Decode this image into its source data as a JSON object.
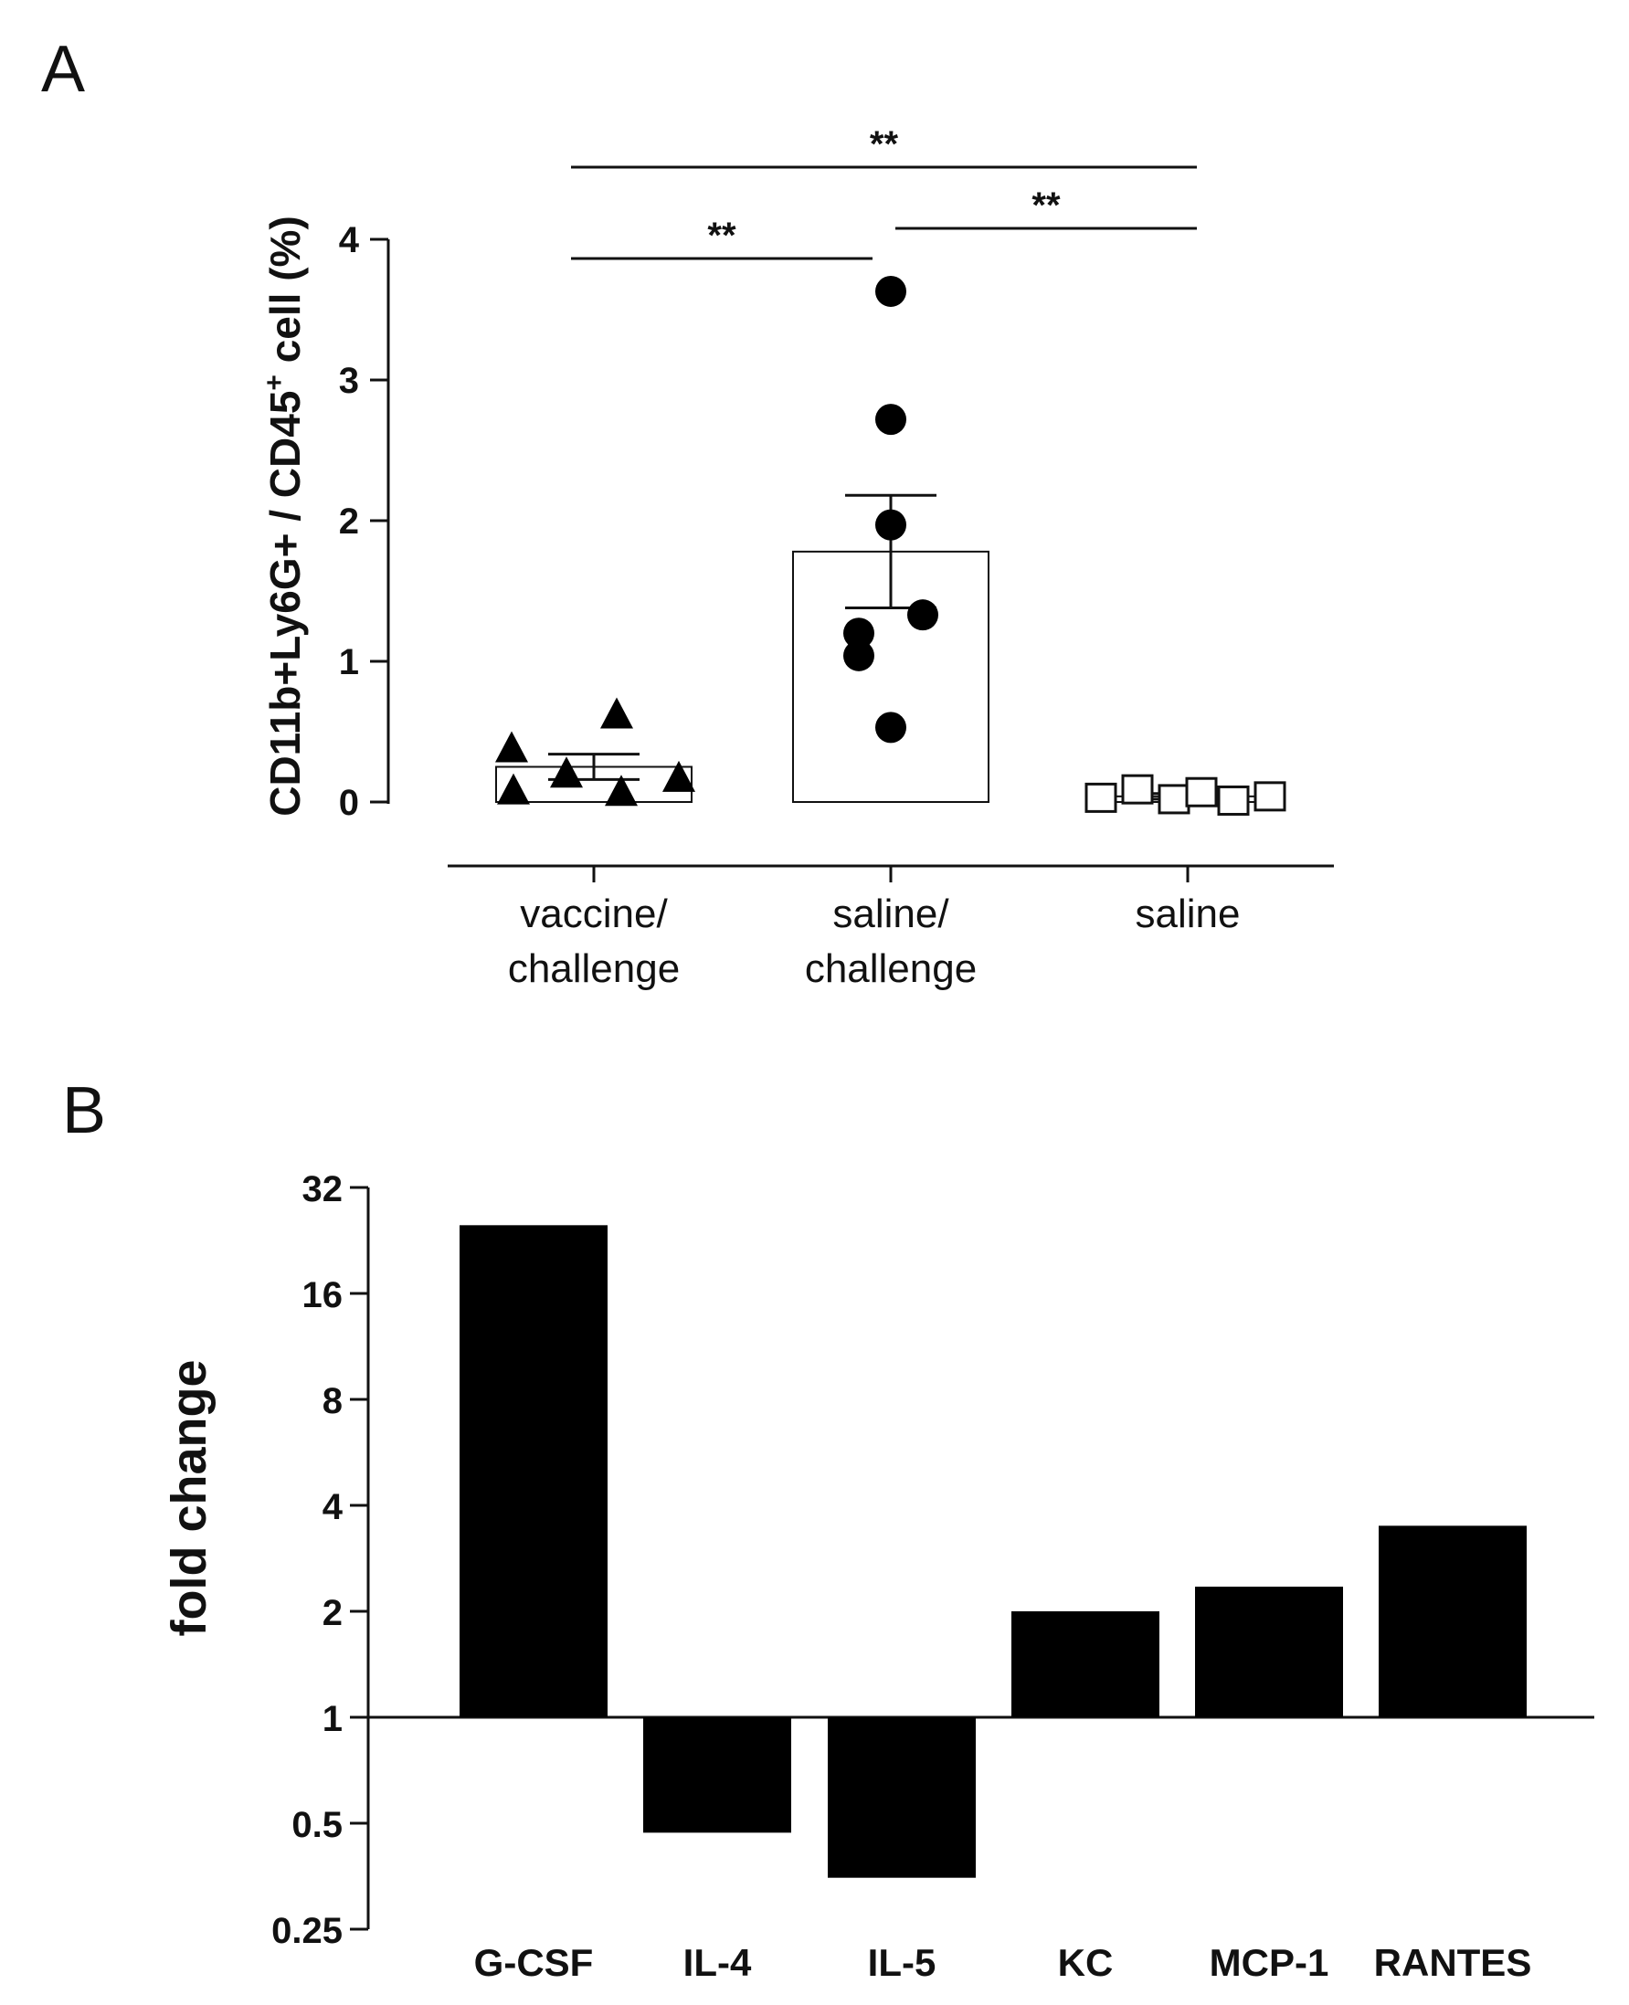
{
  "panels": {
    "a_label": "A",
    "b_label": "B"
  },
  "chart_data": [
    {
      "type": "scatter",
      "panel": "A",
      "ylabel_main": "CD11b+Ly6G+ / CD45",
      "ylabel_sup": "+",
      "ylabel_tail": " cell (%)",
      "ylim": [
        0,
        4
      ],
      "yticks": [
        0,
        1,
        2,
        3,
        4
      ],
      "groups": [
        {
          "name": "vaccine/challenge",
          "label_lines": [
            "vaccine/",
            "challenge"
          ],
          "marker": "triangle",
          "mean": 0.25,
          "sem": 0.09,
          "points": [
            0.38,
            0.08,
            0.2,
            0.62,
            0.07,
            0.17
          ]
        },
        {
          "name": "saline/challenge",
          "label_lines": [
            "saline/",
            "challenge"
          ],
          "marker": "circle",
          "mean": 1.78,
          "sem": 0.4,
          "points": [
            3.63,
            2.72,
            1.97,
            1.2,
            1.33,
            1.04,
            0.53
          ]
        },
        {
          "name": "saline",
          "label_lines": [
            "saline"
          ],
          "marker": "open-square",
          "mean": 0.04,
          "sem": 0.02,
          "points": [
            0.03,
            0.09,
            0.02,
            0.07,
            0.01,
            0.04
          ]
        }
      ],
      "significance": [
        {
          "from": 0,
          "to": 2,
          "label": "**"
        },
        {
          "from": 0,
          "to": 1,
          "label": "**"
        },
        {
          "from": 1,
          "to": 2,
          "label": "**"
        }
      ]
    },
    {
      "type": "bar",
      "panel": "B",
      "ylabel": "fold change",
      "yscale": "log2",
      "ylim": [
        0.25,
        32
      ],
      "baseline": 1,
      "yticks": [
        0.25,
        0.5,
        1,
        2,
        4,
        8,
        16,
        32
      ],
      "ytick_labels": [
        "0.25",
        "0.5",
        "1",
        "2",
        "4",
        "8",
        "16",
        "32"
      ],
      "categories": [
        "G-CSF",
        "IL-4",
        "IL-5",
        "KC",
        "MCP-1",
        "RANTES"
      ],
      "values": [
        25,
        0.47,
        0.35,
        2.0,
        2.35,
        3.5
      ]
    }
  ]
}
